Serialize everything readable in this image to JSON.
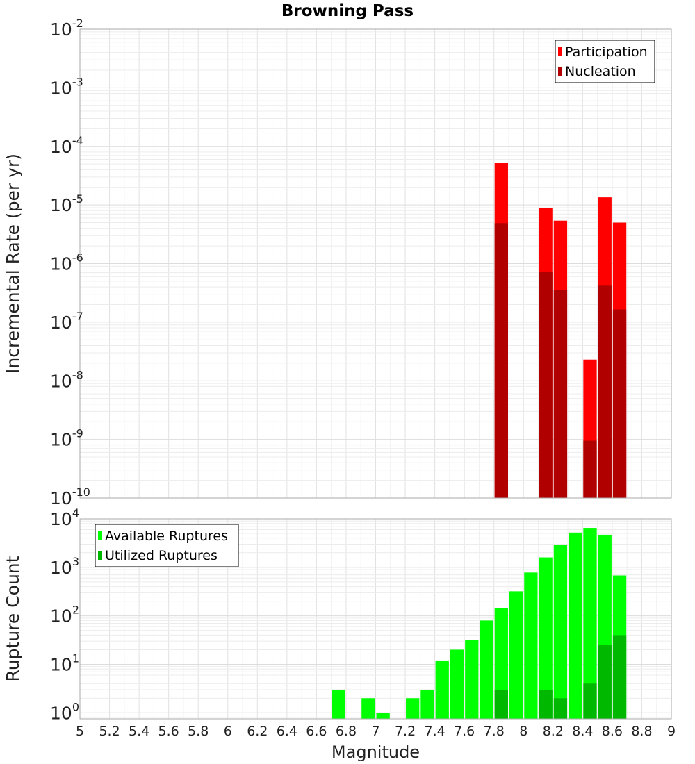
{
  "chart_data": [
    {
      "type": "bar",
      "title": "Browning Pass",
      "ylabel": "Incremental Rate (per yr)",
      "xlabel": "",
      "xlim": [
        5,
        9
      ],
      "ylim": [
        1e-10,
        0.01
      ],
      "yscale": "log",
      "grid": true,
      "legend": "top-right",
      "bin_width": 0.1,
      "ytick_labels": [
        {
          "base": "10",
          "exp": "-10"
        },
        {
          "base": "10",
          "exp": "-9"
        },
        {
          "base": "10",
          "exp": "-8"
        },
        {
          "base": "10",
          "exp": "-7"
        },
        {
          "base": "10",
          "exp": "-6"
        },
        {
          "base": "10",
          "exp": "-5"
        },
        {
          "base": "10",
          "exp": "-4"
        },
        {
          "base": "10",
          "exp": "-3"
        },
        {
          "base": "10",
          "exp": "-2"
        }
      ],
      "ytick_values": [
        1e-10,
        1e-09,
        1e-08,
        1e-07,
        1e-06,
        1e-05,
        0.0001,
        0.001,
        0.01
      ],
      "series": [
        {
          "name": "Participation",
          "color": "#ff0000",
          "x": [
            7.85,
            8.15,
            8.25,
            8.45,
            8.55,
            8.65
          ],
          "values": [
            5.3e-05,
            8.8e-06,
            5.4e-06,
            2.3e-08,
            1.35e-05,
            5e-06
          ]
        },
        {
          "name": "Nucleation",
          "color": "#b00000",
          "x": [
            7.85,
            8.15,
            8.25,
            8.45,
            8.55,
            8.65
          ],
          "values": [
            4.9e-06,
            7.3e-07,
            3.5e-07,
            9.5e-10,
            4.2e-07,
            1.65e-07
          ]
        }
      ]
    },
    {
      "type": "bar",
      "title": "",
      "ylabel": "Rupture Count",
      "xlabel": "Magnitude",
      "xlim": [
        5,
        9
      ],
      "ylim": [
        0.75,
        10000
      ],
      "yscale": "log",
      "grid": true,
      "legend": "top-left",
      "bin_width": 0.1,
      "ytick_labels": [
        {
          "base": "10",
          "exp": "0"
        },
        {
          "base": "10",
          "exp": "1"
        },
        {
          "base": "10",
          "exp": "2"
        },
        {
          "base": "10",
          "exp": "3"
        },
        {
          "base": "10",
          "exp": "4"
        }
      ],
      "ytick_values": [
        1,
        10,
        100,
        1000,
        10000
      ],
      "xtick_labels": [
        "5",
        "5.2",
        "5.4",
        "5.6",
        "5.8",
        "6",
        "6.2",
        "6.4",
        "6.6",
        "6.8",
        "7",
        "7.2",
        "7.4",
        "7.6",
        "7.8",
        "8",
        "8.2",
        "8.4",
        "8.6",
        "8.8",
        "9"
      ],
      "xtick_values": [
        5,
        5.2,
        5.4,
        5.6,
        5.8,
        6,
        6.2,
        6.4,
        6.6,
        6.8,
        7,
        7.2,
        7.4,
        7.6,
        7.8,
        8,
        8.2,
        8.4,
        8.6,
        8.8,
        9
      ],
      "series": [
        {
          "name": "Available Ruptures",
          "color": "#00ff00",
          "x": [
            6.75,
            6.95,
            7.05,
            7.25,
            7.35,
            7.45,
            7.55,
            7.65,
            7.75,
            7.85,
            7.95,
            8.05,
            8.15,
            8.25,
            8.35,
            8.45,
            8.55,
            8.65
          ],
          "values": [
            3,
            2,
            1,
            2,
            3,
            12,
            20,
            32,
            80,
            145,
            320,
            780,
            1600,
            2900,
            5200,
            6500,
            4700,
            680
          ]
        },
        {
          "name": "Utilized Ruptures",
          "color": "#00b800",
          "x": [
            7.85,
            8.15,
            8.25,
            8.45,
            8.55,
            8.65
          ],
          "values": [
            3,
            3,
            2,
            4,
            25,
            40
          ]
        }
      ]
    }
  ]
}
